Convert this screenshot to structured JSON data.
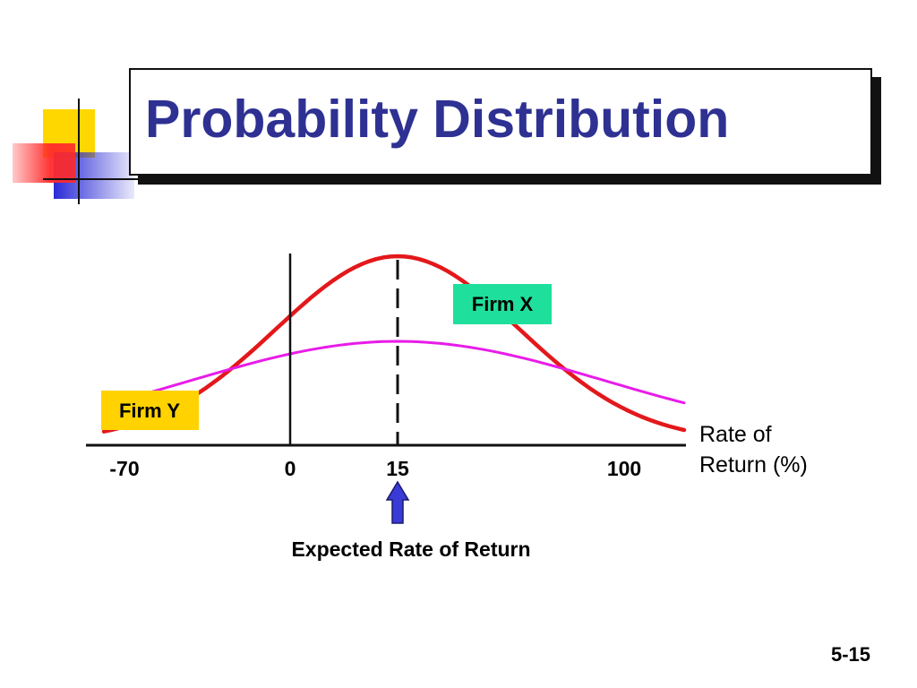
{
  "slide": {
    "title": "Probability Distribution",
    "number": "5-15"
  },
  "chart_data": {
    "type": "line",
    "title": "",
    "xlabel": "Rate of Return (%)",
    "xlabel_lines": [
      "Rate of",
      "Return (%)"
    ],
    "ylabel": "",
    "xlim": [
      -70,
      100
    ],
    "x_ticks": [
      {
        "value": -70,
        "label": "-70"
      },
      {
        "value": 0,
        "label": "0"
      },
      {
        "value": 15,
        "label": "15"
      },
      {
        "value": 100,
        "label": "100"
      }
    ],
    "mean": 15,
    "series": [
      {
        "name": "Firm X",
        "mean": 15,
        "std_dev": 17,
        "x_range": [
          -40,
          70
        ],
        "color": "#e3181b"
      },
      {
        "name": "Firm Y",
        "mean": 15,
        "std_dev": 29,
        "x_range": [
          -90,
          120
        ],
        "color": "#e81ce8"
      }
    ],
    "annotations": {
      "firm_x_label": "Firm X",
      "firm_x_bg": "#1fdf9c",
      "firm_y_label": "Firm Y",
      "firm_y_bg": "#ffd200",
      "expected_return_label": "Expected Rate of Return",
      "arrow_color": "#3a3ad6"
    },
    "grid": false,
    "legend": "none"
  }
}
